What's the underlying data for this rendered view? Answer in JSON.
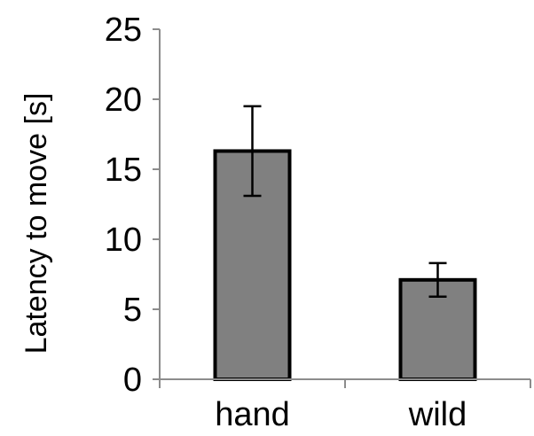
{
  "chart_data": {
    "type": "bar",
    "title": "",
    "xlabel": "",
    "ylabel": "Latency to move [s]",
    "categories": [
      "hand",
      "wild"
    ],
    "values": [
      16.3,
      7.1
    ],
    "error": [
      3.2,
      1.2
    ],
    "ylim": [
      0,
      25
    ],
    "yticks": [
      0,
      5,
      10,
      15,
      20,
      25
    ],
    "grid": false,
    "legend": "none",
    "colors": {
      "bar_fill": "#808080",
      "bar_edge": "#000000",
      "axis": "#8c8c8c",
      "error_bar": "#000000"
    }
  }
}
